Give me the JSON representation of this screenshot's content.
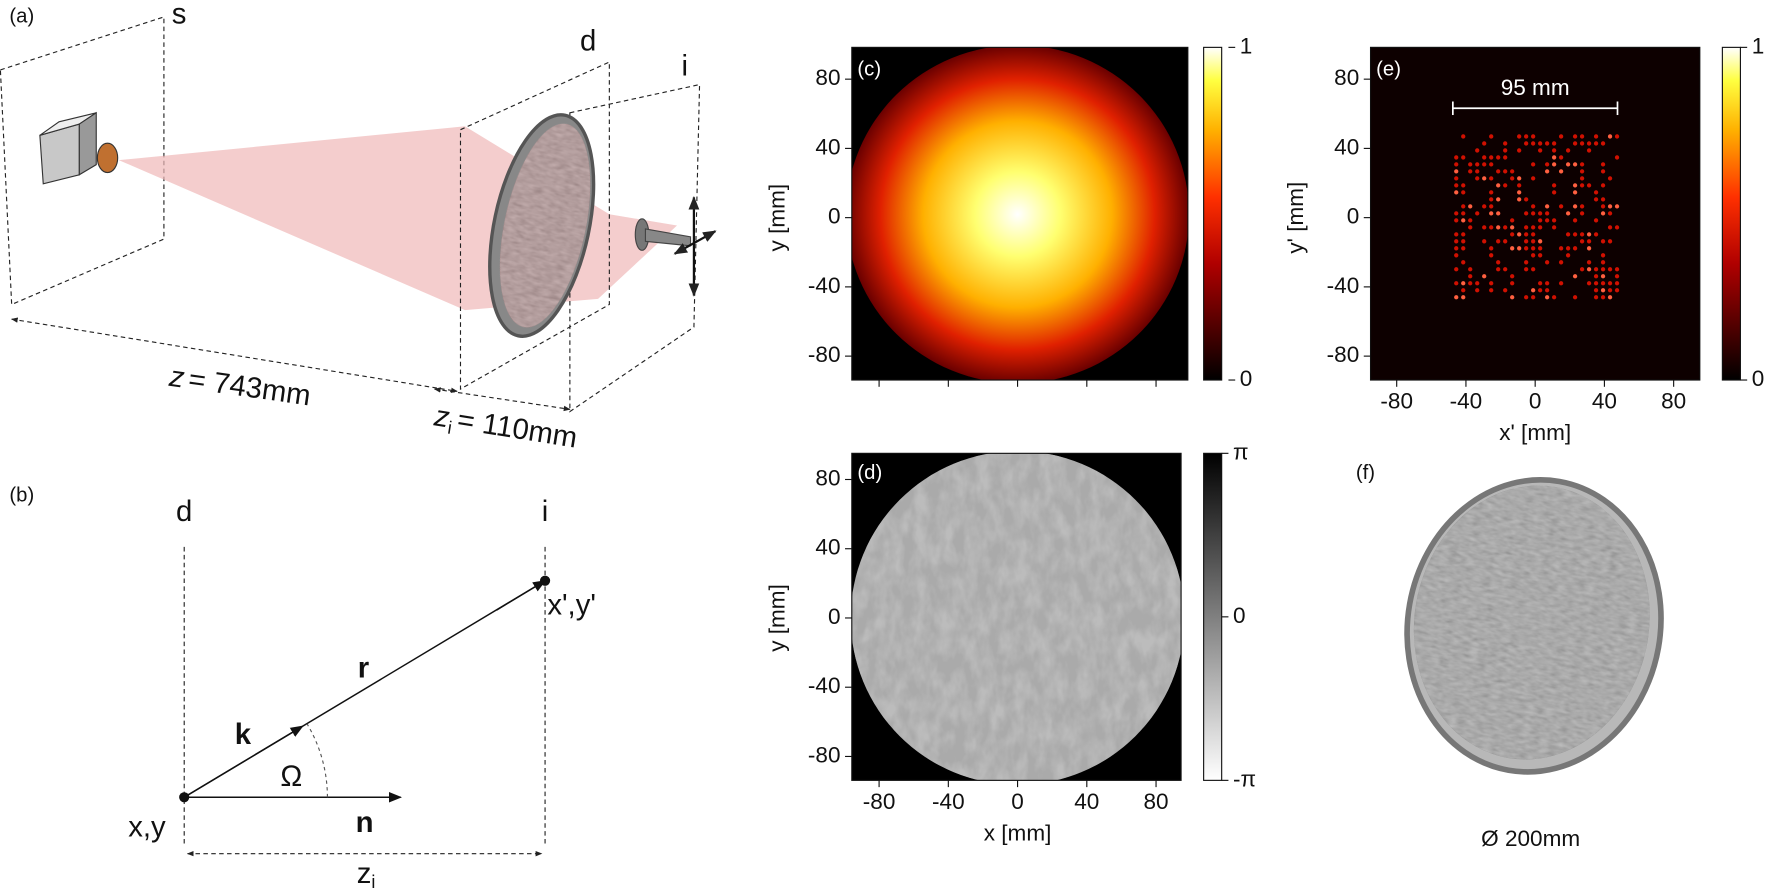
{
  "panel_a": {
    "label": "(a)",
    "plane_labels": [
      "s",
      "d",
      "i"
    ],
    "z_symbol": "z",
    "z_value": "= 743mm",
    "zi_symbol": "z",
    "zi_subscript": "i",
    "zi_value": "= 110mm"
  },
  "panel_b": {
    "label": "(b)",
    "plane_labels": [
      "d",
      "i"
    ],
    "k": "k",
    "r": "r",
    "n": "n",
    "omega": "Ω",
    "source_point": "x,y",
    "image_point": "x',y'",
    "distance_symbol": "z",
    "distance_subscript": "i"
  },
  "panel_c": {
    "label": "(c)",
    "y_label": "y [mm]",
    "yticks": [
      80,
      40,
      0,
      -40,
      -80
    ],
    "colorbar_ticks": [
      1,
      0
    ]
  },
  "panel_d": {
    "label": "(d)",
    "x_label": "x [mm]",
    "y_label": "y [mm]",
    "xticks": [
      -80,
      -40,
      0,
      40,
      80
    ],
    "yticks": [
      80,
      40,
      0,
      -40,
      -80
    ],
    "colorbar_ticks": [
      "π",
      0,
      "-π"
    ]
  },
  "panel_e": {
    "label": "(e)",
    "x_label": "x' [mm]",
    "y_label": "y' [mm]",
    "xticks": [
      -80,
      -40,
      0,
      40,
      80
    ],
    "yticks": [
      80,
      40,
      0,
      -40,
      -80
    ],
    "colorbar_ticks": [
      1,
      0
    ],
    "scale_bar": "95 mm"
  },
  "panel_f": {
    "label": "(f)",
    "caption": "Ø 200mm"
  }
}
